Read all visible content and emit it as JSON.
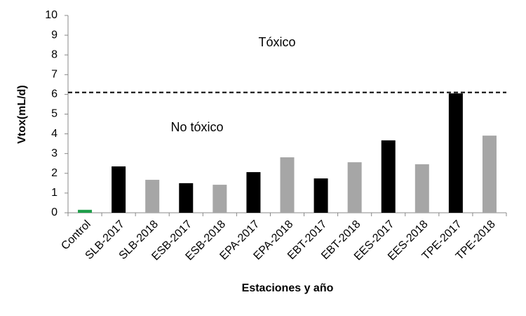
{
  "chart_data": {
    "type": "bar",
    "x_label": "Estaciones y año",
    "y_label": "Vtox(mL/d)",
    "categories": [
      "Control",
      "SLB-2017",
      "SLB-2018",
      "ESB-2017",
      "ESB-2018",
      "EPA-2017",
      "EPA-2018",
      "EBT-2017",
      "EBT-2018",
      "EES-2017",
      "EES-2018",
      "TPE-2017",
      "TPE-2018"
    ],
    "values": [
      0.15,
      2.35,
      1.67,
      1.5,
      1.42,
      2.06,
      2.81,
      1.74,
      2.56,
      3.67,
      2.46,
      6.05,
      3.91
    ],
    "colors": [
      "#1e9e4a",
      "#000000",
      "#a6a6a6",
      "#000000",
      "#a6a6a6",
      "#000000",
      "#a6a6a6",
      "#000000",
      "#a6a6a6",
      "#000000",
      "#a6a6a6",
      "#000000",
      "#a6a6a6"
    ],
    "threshold": 6.1,
    "annotations": [
      "Tóxico",
      "No tóxico"
    ],
    "ylim": [
      0,
      10
    ],
    "yticks": [
      0,
      1,
      2,
      3,
      4,
      5,
      6,
      7,
      8,
      9,
      10
    ],
    "grid": false
  }
}
